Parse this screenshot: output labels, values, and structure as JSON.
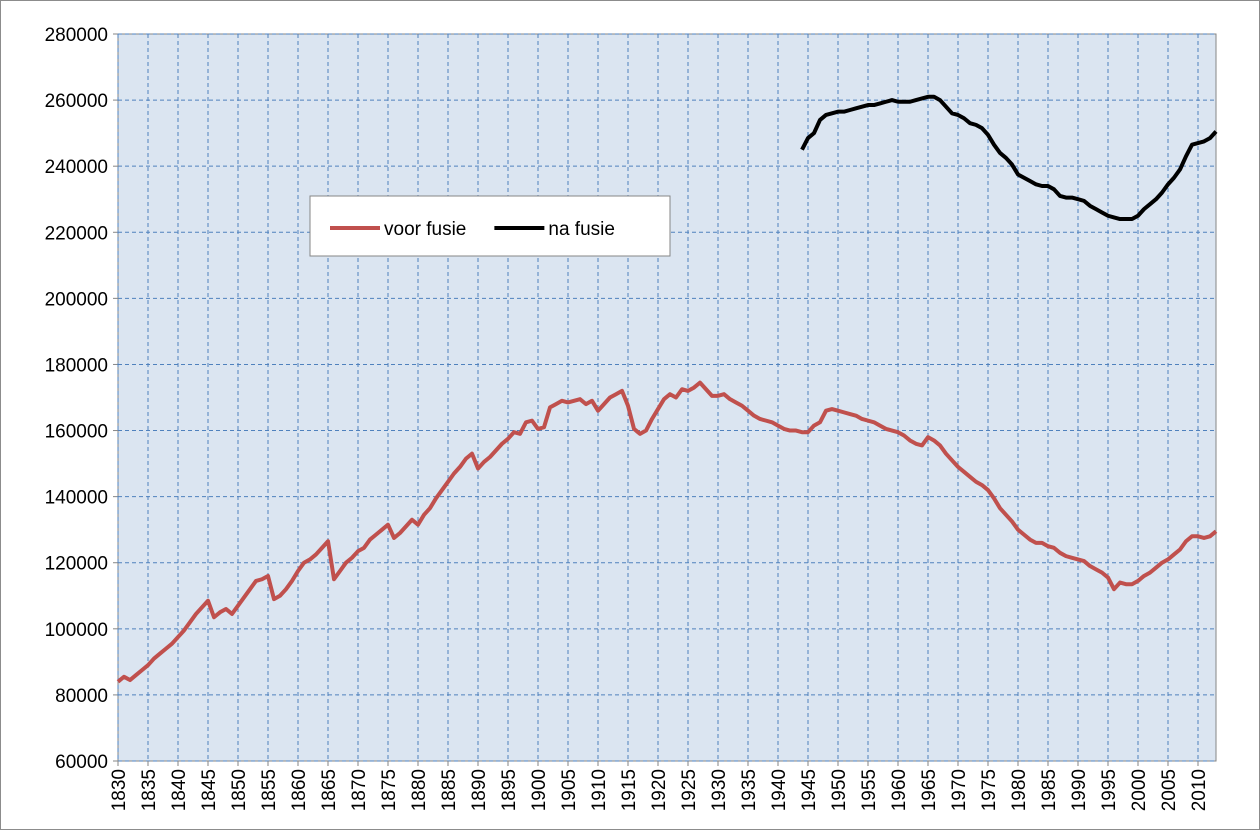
{
  "chart_data": {
    "type": "line",
    "x": [
      1830,
      1831,
      1832,
      1833,
      1834,
      1835,
      1836,
      1837,
      1838,
      1839,
      1840,
      1841,
      1842,
      1843,
      1844,
      1845,
      1846,
      1847,
      1848,
      1849,
      1850,
      1851,
      1852,
      1853,
      1854,
      1855,
      1856,
      1857,
      1858,
      1859,
      1860,
      1861,
      1862,
      1863,
      1864,
      1865,
      1866,
      1867,
      1868,
      1869,
      1870,
      1871,
      1872,
      1873,
      1874,
      1875,
      1876,
      1877,
      1878,
      1879,
      1880,
      1881,
      1882,
      1883,
      1884,
      1885,
      1886,
      1887,
      1888,
      1889,
      1890,
      1891,
      1892,
      1893,
      1894,
      1895,
      1896,
      1897,
      1898,
      1899,
      1900,
      1901,
      1902,
      1903,
      1904,
      1905,
      1906,
      1907,
      1908,
      1909,
      1910,
      1911,
      1912,
      1913,
      1914,
      1915,
      1916,
      1917,
      1918,
      1919,
      1920,
      1921,
      1922,
      1923,
      1924,
      1925,
      1926,
      1927,
      1928,
      1929,
      1930,
      1931,
      1932,
      1933,
      1934,
      1935,
      1936,
      1937,
      1938,
      1939,
      1940,
      1941,
      1942,
      1943,
      1944,
      1945,
      1946,
      1947,
      1948,
      1949,
      1950,
      1951,
      1952,
      1953,
      1954,
      1955,
      1956,
      1957,
      1958,
      1959,
      1960,
      1961,
      1962,
      1963,
      1964,
      1965,
      1966,
      1967,
      1968,
      1969,
      1970,
      1971,
      1972,
      1973,
      1974,
      1975,
      1976,
      1977,
      1978,
      1979,
      1980,
      1981,
      1982,
      1983,
      1984,
      1985,
      1986,
      1987,
      1988,
      1989,
      1990,
      1991,
      1992,
      1993,
      1994,
      1995,
      1996,
      1997,
      1998,
      1999,
      2000,
      2001,
      2002,
      2003,
      2004,
      2005,
      2006,
      2007,
      2008,
      2009,
      2010,
      2011,
      2012,
      2013
    ],
    "series": [
      {
        "name": "voor fusie",
        "color": "#c0504d",
        "values": [
          84000,
          85500,
          84500,
          86000,
          87500,
          89000,
          91000,
          92500,
          94000,
          95500,
          97500,
          99500,
          102000,
          104500,
          106500,
          108500,
          103500,
          105000,
          106000,
          104500,
          107000,
          109500,
          112000,
          114500,
          115000,
          116000,
          109000,
          110000,
          112000,
          114500,
          117500,
          120000,
          121000,
          122500,
          124500,
          126500,
          115000,
          117500,
          120000,
          121500,
          123500,
          124500,
          127000,
          128500,
          130000,
          131500,
          127500,
          129000,
          131000,
          133000,
          131500,
          134500,
          136500,
          139500,
          142000,
          144500,
          147000,
          149000,
          151500,
          153000,
          148500,
          150500,
          152000,
          154000,
          156000,
          157500,
          159500,
          159000,
          162500,
          163000,
          160500,
          161000,
          167000,
          168000,
          169000,
          168500,
          169000,
          169500,
          168000,
          169000,
          166000,
          168000,
          170000,
          171000,
          172000,
          167500,
          160500,
          159000,
          160000,
          163500,
          166500,
          169500,
          171000,
          170000,
          172500,
          172000,
          173000,
          174500,
          172500,
          170500,
          170500,
          171000,
          169500,
          168500,
          167500,
          166000,
          164500,
          163500,
          163000,
          162500,
          161500,
          160500,
          160000,
          160000,
          159500,
          159500,
          161500,
          162500,
          166000,
          166500,
          166000,
          165500,
          165000,
          164500,
          163500,
          163000,
          162500,
          161500,
          160500,
          160000,
          159500,
          158500,
          157000,
          156000,
          155500,
          158000,
          157000,
          155500,
          153000,
          151000,
          149000,
          147500,
          146000,
          144500,
          143500,
          142000,
          139500,
          136500,
          134500,
          132500,
          130000,
          128500,
          127000,
          126000,
          126000,
          125000,
          124500,
          123000,
          122000,
          121500,
          121000,
          120500,
          119000,
          118000,
          117000,
          115500,
          112000,
          114000,
          113500,
          113500,
          114500,
          116000,
          117000,
          118500,
          120000,
          121000,
          122500,
          124000,
          126500,
          128000,
          128000,
          127500,
          128000,
          129500
        ]
      },
      {
        "name": "na fusie",
        "color": "#000000",
        "values": [
          null,
          null,
          null,
          null,
          null,
          null,
          null,
          null,
          null,
          null,
          null,
          null,
          null,
          null,
          null,
          null,
          null,
          null,
          null,
          null,
          null,
          null,
          null,
          null,
          null,
          null,
          null,
          null,
          null,
          null,
          null,
          null,
          null,
          null,
          null,
          null,
          null,
          null,
          null,
          null,
          null,
          null,
          null,
          null,
          null,
          null,
          null,
          null,
          null,
          null,
          null,
          null,
          null,
          null,
          null,
          null,
          null,
          null,
          null,
          null,
          null,
          null,
          null,
          null,
          null,
          null,
          null,
          null,
          null,
          null,
          null,
          null,
          null,
          null,
          null,
          null,
          null,
          null,
          null,
          null,
          null,
          null,
          null,
          null,
          null,
          null,
          null,
          null,
          null,
          null,
          null,
          null,
          null,
          null,
          null,
          null,
          null,
          null,
          null,
          null,
          null,
          null,
          null,
          null,
          null,
          null,
          null,
          null,
          null,
          null,
          null,
          null,
          null,
          null,
          245000,
          248500,
          250000,
          254000,
          255500,
          256000,
          256500,
          256500,
          257000,
          257500,
          258000,
          258500,
          258500,
          259000,
          259500,
          260000,
          259500,
          259500,
          259500,
          260000,
          260500,
          261000,
          261000,
          260000,
          258000,
          256000,
          255500,
          254500,
          253000,
          252500,
          251500,
          249500,
          246500,
          244000,
          242500,
          240500,
          237500,
          236500,
          235500,
          234500,
          234000,
          234000,
          233000,
          231000,
          230500,
          230500,
          230000,
          229500,
          228000,
          227000,
          226000,
          225000,
          224500,
          224000,
          224000,
          224000,
          225000,
          227000,
          228500,
          230000,
          232000,
          234500,
          236500,
          239000,
          243000,
          246500,
          247000,
          247500,
          248500,
          250500
        ]
      }
    ],
    "xlim": [
      1830,
      2013
    ],
    "xticks": [
      1830,
      1835,
      1840,
      1845,
      1850,
      1855,
      1860,
      1865,
      1870,
      1875,
      1880,
      1885,
      1890,
      1895,
      1900,
      1905,
      1910,
      1915,
      1920,
      1925,
      1930,
      1935,
      1940,
      1945,
      1950,
      1955,
      1960,
      1965,
      1970,
      1975,
      1980,
      1985,
      1990,
      1995,
      2000,
      2005,
      2010
    ],
    "ylim": [
      60000,
      280000
    ],
    "yticks": [
      60000,
      80000,
      100000,
      120000,
      140000,
      160000,
      180000,
      200000,
      220000,
      240000,
      260000,
      280000
    ],
    "grid": true,
    "legend": "inside"
  }
}
